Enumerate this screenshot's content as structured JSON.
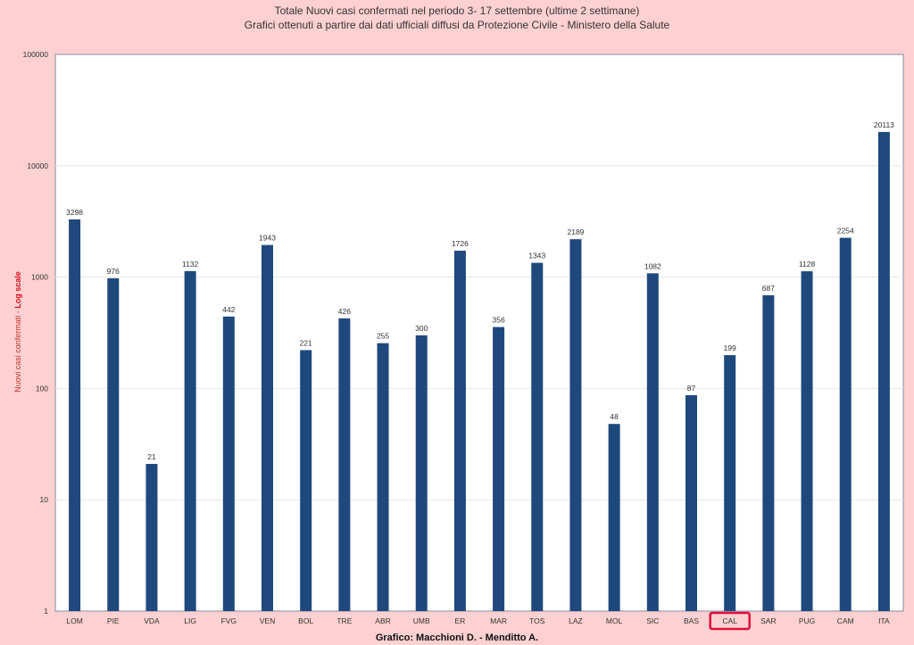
{
  "header": {
    "line1": "Totale Nuovi casi confermati nel periodo 3- 17 settembre  (ultime 2 settimane)",
    "line2": "Grafici ottenuti a partire dai dati ufficiali diffusi da Protezione Civile - Ministero della Salute"
  },
  "footer": {
    "credit": "Grafico: Macchioni D. - Menditto A."
  },
  "yaxis": {
    "label_main": "Nuovi casi confermati - ",
    "label_emph": "Log scale"
  },
  "colors": {
    "bar": "#1f497d",
    "highlight": "#e0103a",
    "background": "#fdd0d2",
    "plot": "#ffffff"
  },
  "chart_data": {
    "type": "bar",
    "title": "Totale Nuovi casi confermati nel periodo 3- 17 settembre  (ultime 2 settimane)",
    "subtitle": "Grafici ottenuti a partire dai dati ufficiali diffusi da Protezione Civile - Ministero della Salute",
    "ylabel": "Nuovi casi confermati - Log scale",
    "xlabel": "",
    "yscale": "log",
    "ylim": [
      1,
      100000
    ],
    "yticks": [
      "1",
      "10",
      "100",
      "1000",
      "10000",
      "100000"
    ],
    "grid": true,
    "highlighted_category": "CAL",
    "categories": [
      "LOM",
      "PIE",
      "VDA",
      "LIG",
      "FVG",
      "VEN",
      "BOL",
      "TRE",
      "ABR",
      "UMB",
      "ER",
      "MAR",
      "TOS",
      "LAZ",
      "MOL",
      "SIC",
      "BAS",
      "CAL",
      "SAR",
      "PUG",
      "CAM",
      "ITA"
    ],
    "values": [
      3298,
      976,
      21,
      1132,
      442,
      1943,
      221,
      426,
      255,
      300,
      1726,
      356,
      1343,
      2189,
      48,
      1082,
      87,
      199,
      687,
      1128,
      2254,
      20113
    ]
  }
}
